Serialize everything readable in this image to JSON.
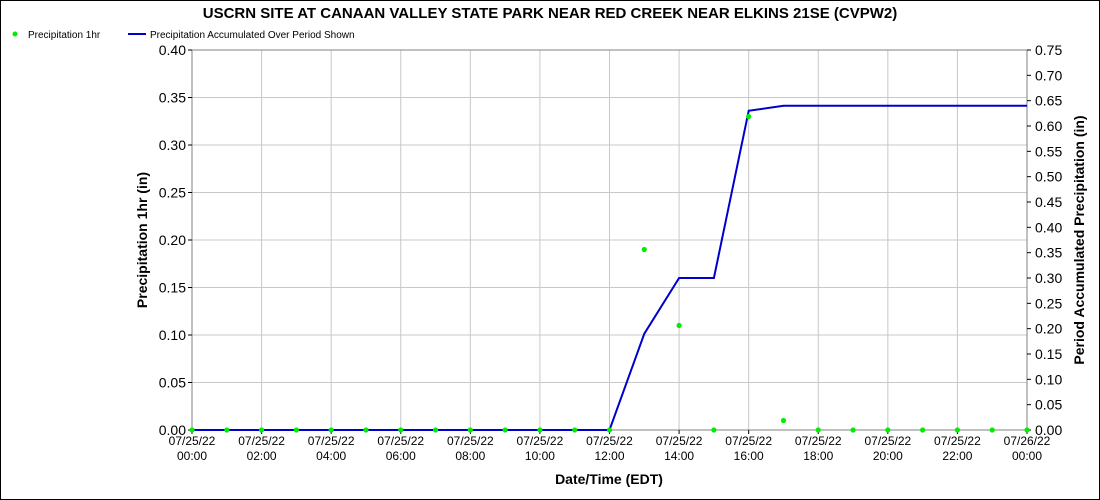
{
  "chart_data": {
    "type": "line",
    "title": "USCRN SITE AT CANAAN VALLEY STATE PARK NEAR RED CREEK NEAR ELKINS 21SE (CVPW2)",
    "xlabel": "Date/Time (EDT)",
    "ylabel_left": "Precipitation 1hr (in)",
    "ylabel_right": "Period Accumulated Precipitation (in)",
    "ylim_left": [
      0,
      0.4
    ],
    "ylim_right": [
      0,
      0.75
    ],
    "yticks_left": [
      "0.00",
      "0.05",
      "0.10",
      "0.15",
      "0.20",
      "0.25",
      "0.30",
      "0.35",
      "0.40"
    ],
    "yticks_right": [
      "0.00",
      "0.05",
      "0.10",
      "0.15",
      "0.20",
      "0.25",
      "0.30",
      "0.35",
      "0.40",
      "0.45",
      "0.50",
      "0.55",
      "0.60",
      "0.65",
      "0.70",
      "0.75"
    ],
    "grid": true,
    "legend_position": "top-left",
    "x_hours_range": [
      0,
      24
    ],
    "xticks": [
      {
        "date": "07/25/22",
        "time": "00:00"
      },
      {
        "date": "07/25/22",
        "time": "02:00"
      },
      {
        "date": "07/25/22",
        "time": "04:00"
      },
      {
        "date": "07/25/22",
        "time": "06:00"
      },
      {
        "date": "07/25/22",
        "time": "08:00"
      },
      {
        "date": "07/25/22",
        "time": "10:00"
      },
      {
        "date": "07/25/22",
        "time": "12:00"
      },
      {
        "date": "07/25/22",
        "time": "14:00"
      },
      {
        "date": "07/25/22",
        "time": "16:00"
      },
      {
        "date": "07/25/22",
        "time": "18:00"
      },
      {
        "date": "07/25/22",
        "time": "20:00"
      },
      {
        "date": "07/25/22",
        "time": "22:00"
      },
      {
        "date": "07/26/22",
        "time": "00:00"
      }
    ],
    "series": [
      {
        "name": "Precipitation 1hr",
        "kind": "scatter",
        "axis": "left",
        "color": "#00ee00",
        "x": [
          0,
          1,
          2,
          3,
          4,
          5,
          6,
          7,
          8,
          9,
          10,
          11,
          12,
          13,
          14,
          15,
          16,
          17,
          18,
          19,
          20,
          21,
          22,
          23,
          24
        ],
        "y": [
          0,
          0,
          0,
          0,
          0,
          0,
          0,
          0,
          0,
          0,
          0,
          0,
          0,
          0.19,
          0.11,
          0,
          0.33,
          0.01,
          0,
          0,
          0,
          0,
          0,
          0,
          0
        ]
      },
      {
        "name": "Precipitation Accumulated Over Period Shown",
        "kind": "line",
        "axis": "right",
        "color": "#0000cc",
        "x": [
          0,
          1,
          2,
          3,
          4,
          5,
          6,
          7,
          8,
          9,
          10,
          11,
          12,
          13,
          14,
          15,
          16,
          17,
          18,
          19,
          20,
          21,
          22,
          23,
          24
        ],
        "y": [
          0,
          0,
          0,
          0,
          0,
          0,
          0,
          0,
          0,
          0,
          0,
          0,
          0,
          0.19,
          0.3,
          0.3,
          0.63,
          0.64,
          0.64,
          0.64,
          0.64,
          0.64,
          0.64,
          0.64,
          0.64
        ]
      }
    ]
  }
}
